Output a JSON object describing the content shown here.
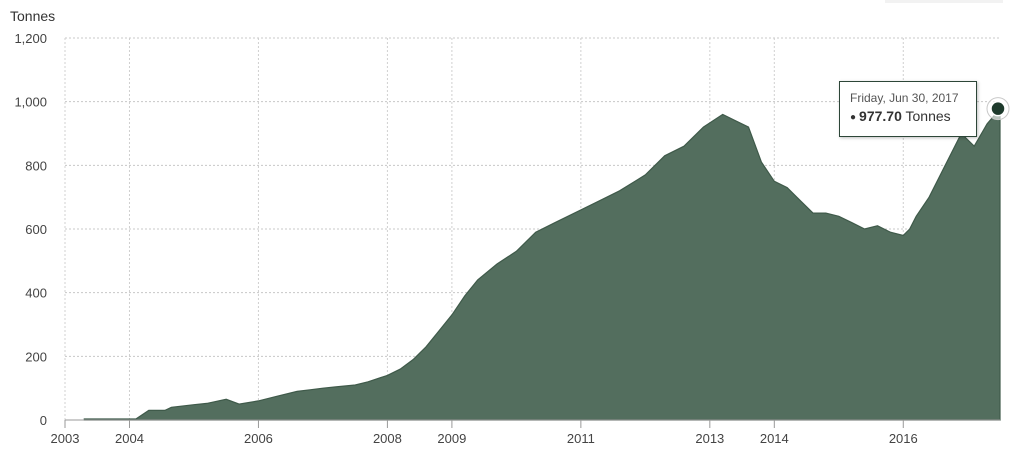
{
  "chart_data": {
    "type": "area",
    "ylabel": "Tonnes",
    "ylim": [
      0,
      1200
    ],
    "yticks": [
      0,
      200,
      400,
      600,
      800,
      1000,
      1200
    ],
    "ytick_labels": [
      "0",
      "200",
      "400",
      "600",
      "800",
      "1,000",
      "1,200"
    ],
    "xticks": [
      2003,
      2004,
      2006,
      2008,
      2009,
      2011,
      2013,
      2014,
      2016
    ],
    "xtick_labels": [
      "2003",
      "2004",
      "2006",
      "2008",
      "2009",
      "2011",
      "2013",
      "2014",
      "2016"
    ],
    "grid": true,
    "color": "#536e5e",
    "series": [
      {
        "x": [
          2003.3,
          2003.8,
          2004.0,
          2004.1,
          2004.3,
          2004.55,
          2004.65,
          2005.0,
          2005.2,
          2005.5,
          2005.7,
          2006.0,
          2006.3,
          2006.6,
          2006.8,
          2007.0,
          2007.2,
          2007.5,
          2007.7,
          2008.0,
          2008.2,
          2008.4,
          2008.6,
          2008.8,
          2009.0,
          2009.2,
          2009.4,
          2009.7,
          2010.0,
          2010.3,
          2010.6,
          2011.0,
          2011.3,
          2011.6,
          2012.0,
          2012.3,
          2012.6,
          2012.9,
          2013.2,
          2013.4,
          2013.6,
          2013.8,
          2014.0,
          2014.2,
          2014.4,
          2014.6,
          2014.8,
          2015.0,
          2015.2,
          2015.4,
          2015.6,
          2015.8,
          2016.0,
          2016.1,
          2016.2,
          2016.4,
          2016.6,
          2016.8,
          2016.9,
          2017.1,
          2017.3,
          2017.5
        ],
        "y": [
          3,
          3,
          3,
          3,
          30,
          30,
          40,
          48,
          52,
          65,
          50,
          60,
          75,
          90,
          95,
          100,
          104,
          110,
          120,
          140,
          160,
          190,
          230,
          280,
          330,
          390,
          440,
          490,
          530,
          590,
          620,
          660,
          690,
          720,
          770,
          830,
          860,
          920,
          960,
          940,
          920,
          810,
          750,
          730,
          690,
          650,
          650,
          640,
          620,
          600,
          610,
          590,
          580,
          600,
          640,
          700,
          780,
          860,
          900,
          860,
          930,
          978
        ]
      }
    ],
    "tooltip": {
      "date": "Friday, Jun 30, 2017",
      "bullet": "●",
      "value": "977.70",
      "unit": "Tonnes"
    }
  }
}
